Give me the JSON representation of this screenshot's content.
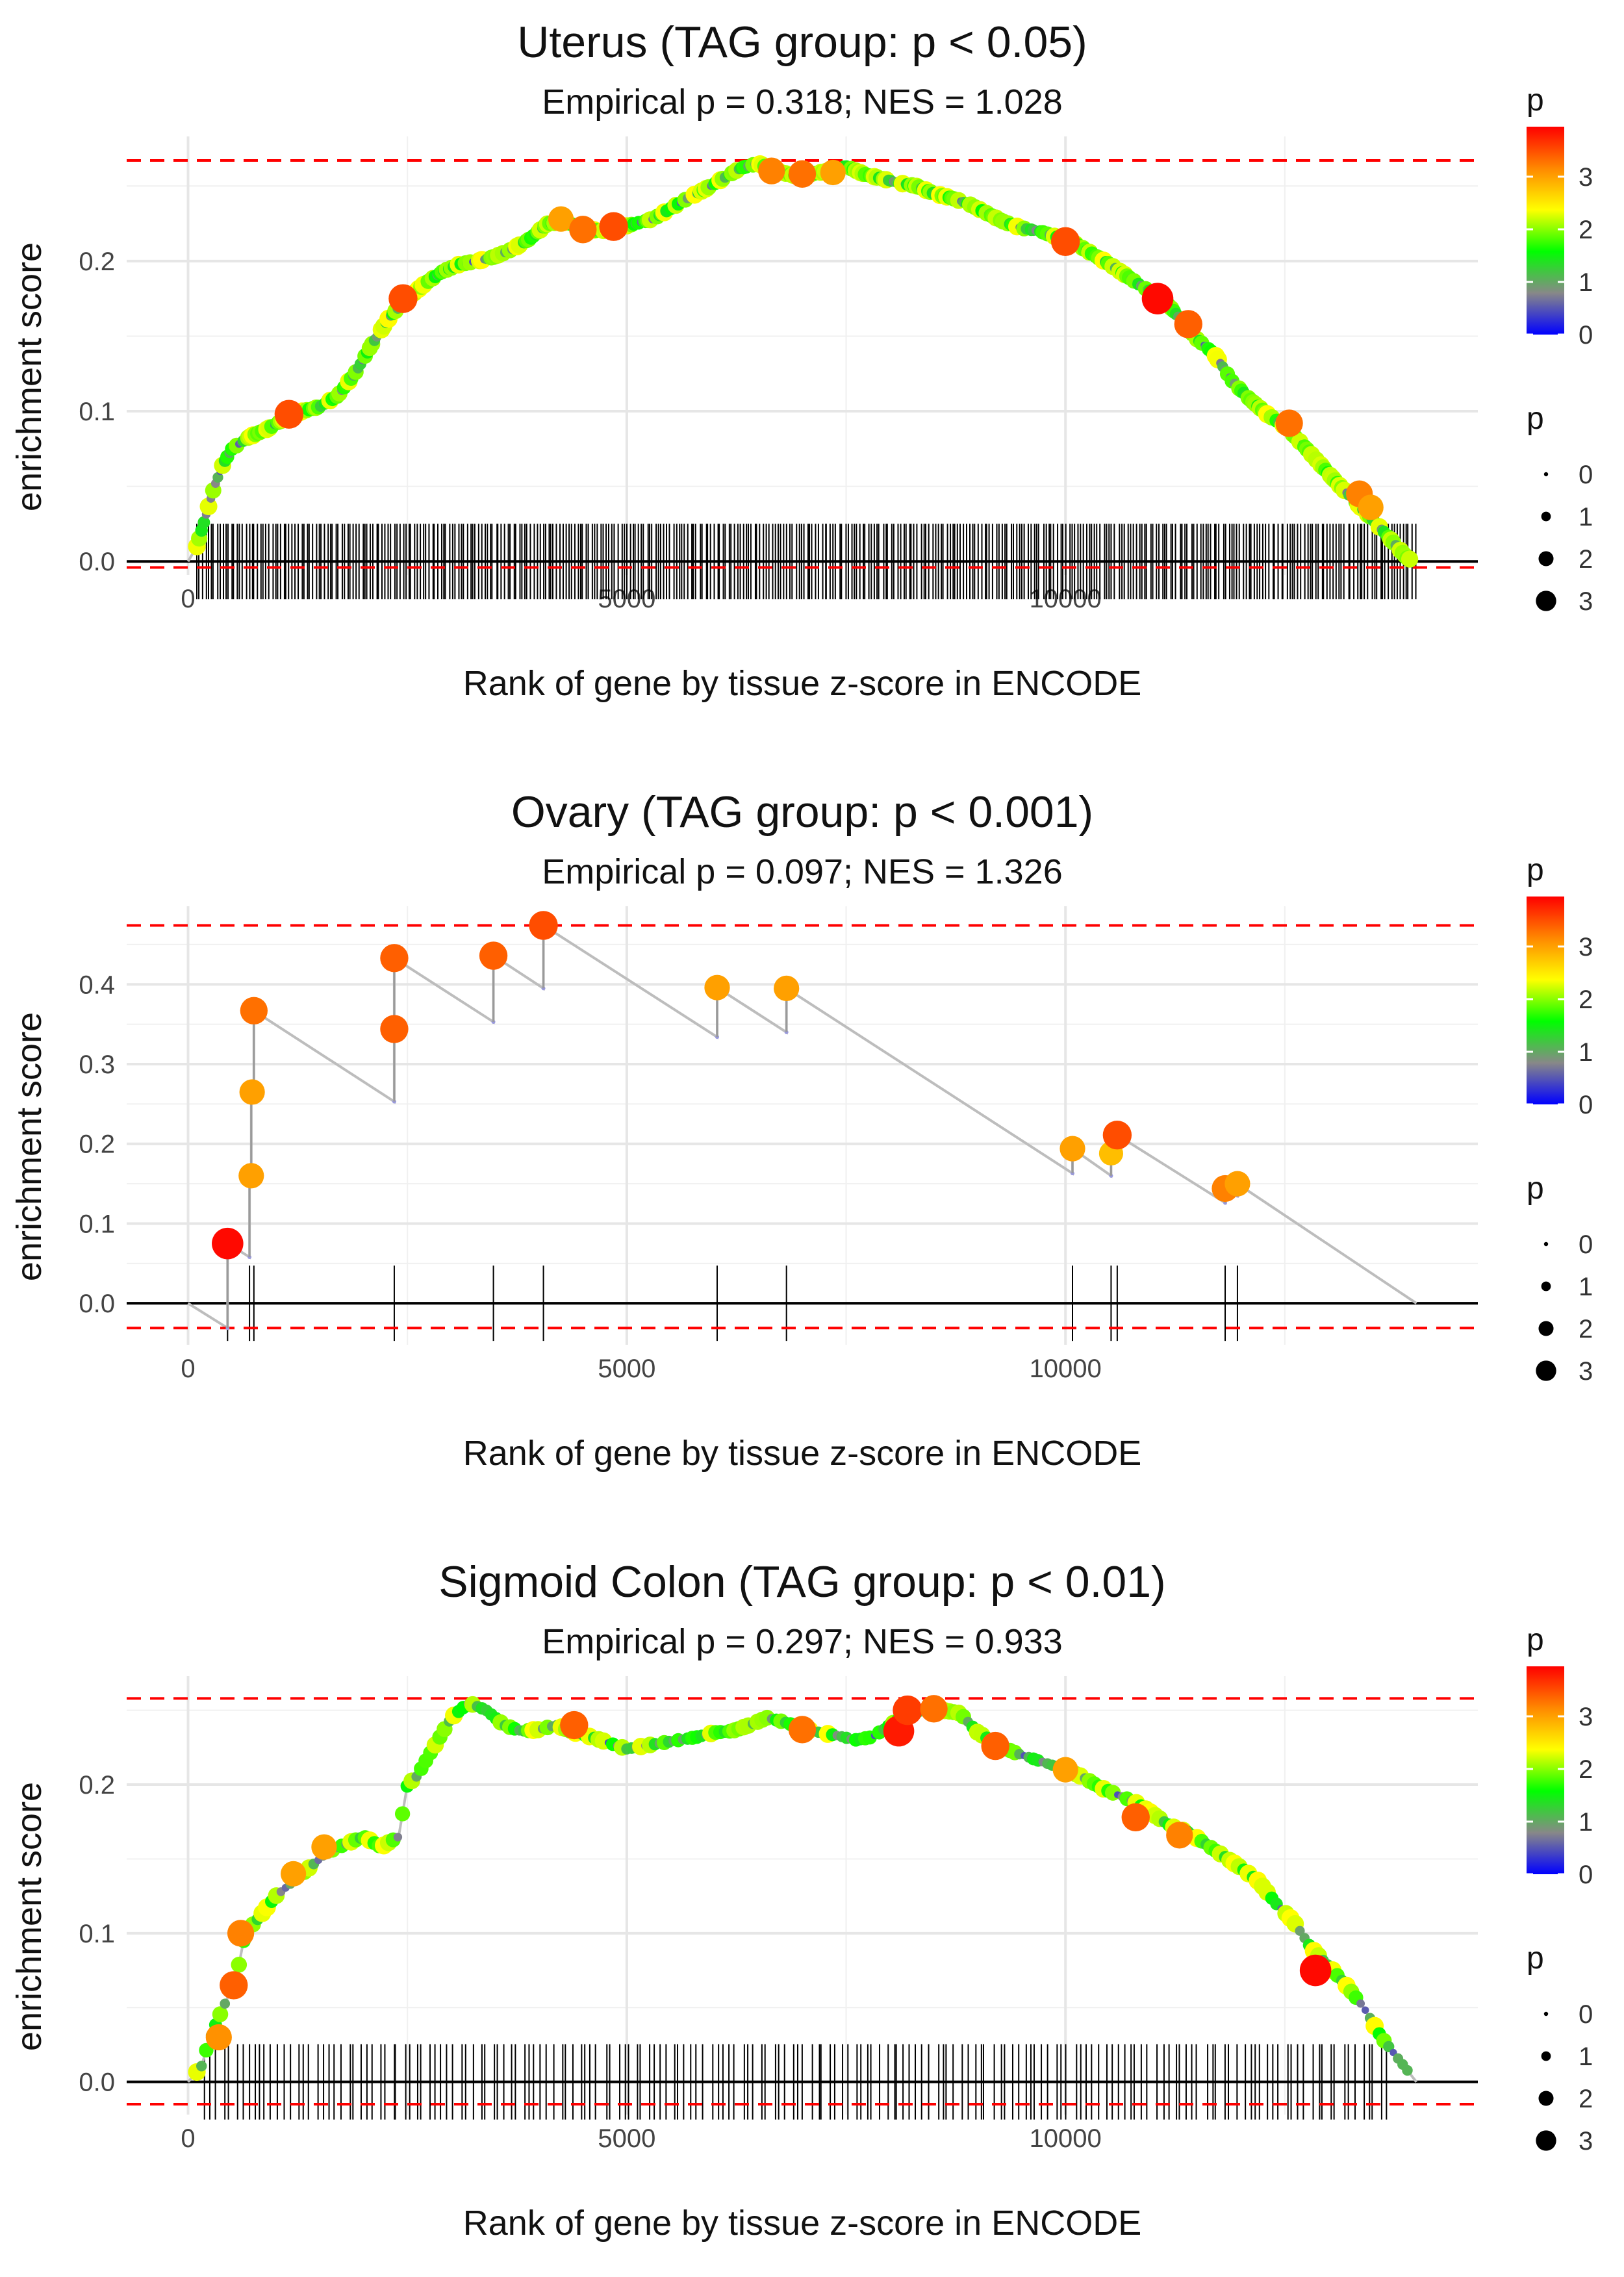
{
  "chart_data": [
    {
      "type": "line",
      "id": "uterus",
      "title": "Uterus (TAG group: p < 0.05)",
      "subtitle": "Empirical p = 0.318; NES = 1.028",
      "xlabel": "Rank of gene by tissue z-score in ENCODE",
      "ylabel": "enrichment score",
      "xlim": [
        -700,
        14700
      ],
      "ylim": [
        -0.009,
        0.283
      ],
      "xticks": [
        0,
        5000,
        10000
      ],
      "xtick_labels": [
        "0",
        "5000",
        "10000"
      ],
      "yticks": [
        0.0,
        0.1,
        0.2
      ],
      "ytick_labels": [
        "0.0",
        "0.1",
        "0.2"
      ],
      "max_es": 0.267,
      "min_es": -0.004,
      "curve_x": [
        0,
        100,
        150,
        200,
        300,
        400,
        500,
        700,
        900,
        1100,
        1300,
        1500,
        1700,
        1900,
        2100,
        2300,
        2500,
        2700,
        2900,
        3100,
        3300,
        3500,
        3700,
        3900,
        4100,
        4300,
        4500,
        4700,
        4900,
        5100,
        5300,
        5500,
        5700,
        5900,
        6100,
        6300,
        6500,
        6700,
        6900,
        7100,
        7300,
        7500,
        7700,
        7900,
        8100,
        8300,
        8500,
        8700,
        8900,
        9100,
        9300,
        9500,
        9700,
        9900,
        10100,
        10300,
        10500,
        10700,
        10900,
        11100,
        11300,
        11500,
        11700,
        11900,
        12100,
        12300,
        12500,
        12700,
        12900,
        13100,
        13300,
        13500,
        13700,
        13900,
        14000
      ],
      "curve_y": [
        0.0,
        0.01,
        0.02,
        0.03,
        0.05,
        0.065,
        0.075,
        0.083,
        0.088,
        0.095,
        0.1,
        0.103,
        0.11,
        0.125,
        0.145,
        0.163,
        0.175,
        0.185,
        0.193,
        0.198,
        0.2,
        0.203,
        0.208,
        0.215,
        0.225,
        0.226,
        0.222,
        0.22,
        0.222,
        0.225,
        0.228,
        0.235,
        0.242,
        0.248,
        0.255,
        0.262,
        0.265,
        0.26,
        0.257,
        0.258,
        0.26,
        0.263,
        0.258,
        0.255,
        0.252,
        0.25,
        0.245,
        0.242,
        0.238,
        0.232,
        0.226,
        0.222,
        0.22,
        0.216,
        0.212,
        0.205,
        0.198,
        0.19,
        0.182,
        0.176,
        0.162,
        0.148,
        0.138,
        0.12,
        0.108,
        0.098,
        0.09,
        0.078,
        0.065,
        0.052,
        0.04,
        0.028,
        0.015,
        0.002,
        0.0
      ],
      "points": [
        {
          "x": 1150,
          "y": 0.098,
          "p": 3.5
        },
        {
          "x": 2450,
          "y": 0.175,
          "p": 3.5
        },
        {
          "x": 4250,
          "y": 0.228,
          "p": 3.0
        },
        {
          "x": 4500,
          "y": 0.221,
          "p": 3.3
        },
        {
          "x": 4850,
          "y": 0.223,
          "p": 3.5
        },
        {
          "x": 6650,
          "y": 0.26,
          "p": 3.2
        },
        {
          "x": 7000,
          "y": 0.258,
          "p": 3.3
        },
        {
          "x": 7350,
          "y": 0.259,
          "p": 3.0
        },
        {
          "x": 10000,
          "y": 0.213,
          "p": 3.5
        },
        {
          "x": 11050,
          "y": 0.175,
          "p": 3.9
        },
        {
          "x": 11400,
          "y": 0.158,
          "p": 3.4
        },
        {
          "x": 12550,
          "y": 0.092,
          "p": 3.3
        },
        {
          "x": 13350,
          "y": 0.045,
          "p": 3.2
        },
        {
          "x": 13480,
          "y": 0.036,
          "p": 3.0
        }
      ],
      "dense_points": true,
      "rug_ticks": "dense",
      "rug_range": [
        80,
        14000
      ],
      "legend": {
        "color_title": "p",
        "color_ticks": [
          "0",
          "1",
          "2",
          "3"
        ],
        "size_title": "p",
        "size_labels": [
          "0",
          "1",
          "2",
          "3"
        ],
        "gradient": [
          "#0000ff",
          "#888888",
          "#00ff00",
          "#ffff00",
          "#ff8800",
          "#ff0000"
        ]
      }
    },
    {
      "type": "line",
      "id": "ovary",
      "title": "Ovary (TAG group: p < 0.001)",
      "subtitle": "Empirical p = 0.097; NES = 1.326",
      "xlabel": "Rank of gene by tissue z-score in ENCODE",
      "ylabel": "enrichment score",
      "xlim": [
        -700,
        14700
      ],
      "ylim": [
        -0.052,
        0.498
      ],
      "xticks": [
        0,
        5000,
        10000
      ],
      "xtick_labels": [
        "0",
        "5000",
        "10000"
      ],
      "yticks": [
        0.0,
        0.1,
        0.2,
        0.3,
        0.4
      ],
      "ytick_labels": [
        "0.0",
        "0.1",
        "0.2",
        "0.3",
        "0.4"
      ],
      "max_es": 0.474,
      "min_es": -0.031,
      "curve_x": [
        0,
        450,
        450,
        700,
        700,
        720,
        720,
        750,
        750,
        2350,
        2350,
        2350,
        3480,
        3480,
        4050,
        4050,
        6030,
        6030,
        6820,
        6820,
        10080,
        10080,
        10520,
        10520,
        10590,
        10590,
        11820,
        11820,
        11960,
        11960,
        14000
      ],
      "curve_y": [
        0.0,
        -0.031,
        0.075,
        0.058,
        0.16,
        0.16,
        0.265,
        0.265,
        0.367,
        0.253,
        0.344,
        0.433,
        0.353,
        0.436,
        0.395,
        0.474,
        0.334,
        0.396,
        0.34,
        0.395,
        0.163,
        0.194,
        0.16,
        0.188,
        0.183,
        0.211,
        0.126,
        0.144,
        0.135,
        0.15,
        0.0
      ],
      "points": [
        {
          "x": 450,
          "y": 0.075,
          "p": 3.9
        },
        {
          "x": 720,
          "y": 0.16,
          "p": 3.0
        },
        {
          "x": 730,
          "y": 0.265,
          "p": 3.0
        },
        {
          "x": 750,
          "y": 0.367,
          "p": 3.3
        },
        {
          "x": 2350,
          "y": 0.344,
          "p": 3.4
        },
        {
          "x": 2350,
          "y": 0.433,
          "p": 3.4
        },
        {
          "x": 3480,
          "y": 0.436,
          "p": 3.4
        },
        {
          "x": 4050,
          "y": 0.474,
          "p": 3.5
        },
        {
          "x": 6030,
          "y": 0.396,
          "p": 3.0
        },
        {
          "x": 6820,
          "y": 0.395,
          "p": 3.0
        },
        {
          "x": 10080,
          "y": 0.194,
          "p": 3.0
        },
        {
          "x": 10520,
          "y": 0.188,
          "p": 2.8
        },
        {
          "x": 10590,
          "y": 0.211,
          "p": 3.5
        },
        {
          "x": 11820,
          "y": 0.144,
          "p": 3.2
        },
        {
          "x": 11960,
          "y": 0.15,
          "p": 3.0
        }
      ],
      "dense_points": false,
      "rug_ticks": [
        450,
        700,
        750,
        2350,
        3480,
        4050,
        6030,
        6820,
        10080,
        10520,
        10590,
        11820,
        11960
      ],
      "legend": {
        "color_title": "p",
        "color_ticks": [
          "0",
          "1",
          "2",
          "3"
        ],
        "size_title": "p",
        "size_labels": [
          "0",
          "1",
          "2",
          "3"
        ],
        "gradient": [
          "#0000ff",
          "#888888",
          "#00ff00",
          "#ffff00",
          "#ff8800",
          "#ff0000"
        ]
      }
    },
    {
      "type": "line",
      "id": "sigmoid-colon",
      "title": "Sigmoid Colon (TAG group: p < 0.01)",
      "subtitle": "Empirical p = 0.297; NES = 0.933",
      "xlabel": "Rank of gene by tissue z-score in ENCODE",
      "ylabel": "enrichment score",
      "xlim": [
        -700,
        14700
      ],
      "ylim": [
        -0.022,
        0.273
      ],
      "xticks": [
        0,
        5000,
        10000
      ],
      "xtick_labels": [
        "0",
        "5000",
        "10000"
      ],
      "yticks": [
        0.0,
        0.1,
        0.2
      ],
      "ytick_labels": [
        "0.0",
        "0.1",
        "0.2"
      ],
      "max_es": 0.258,
      "min_es": -0.015,
      "curve_x": [
        0,
        150,
        250,
        400,
        550,
        650,
        800,
        1000,
        1200,
        1400,
        1600,
        1800,
        2000,
        2200,
        2400,
        2500,
        2600,
        2800,
        3000,
        3200,
        3400,
        3600,
        3800,
        4000,
        4200,
        4400,
        4600,
        4800,
        5000,
        5200,
        5400,
        5600,
        5800,
        6000,
        6200,
        6400,
        6600,
        6800,
        7000,
        7200,
        7400,
        7600,
        7800,
        8000,
        8200,
        8400,
        8600,
        8800,
        9000,
        9200,
        9400,
        9600,
        9800,
        10000,
        10200,
        10400,
        10600,
        10800,
        11000,
        11200,
        11400,
        11600,
        11800,
        12000,
        12200,
        12400,
        12600,
        12800,
        13000,
        13200,
        13400,
        13600,
        13800,
        14000
      ],
      "curve_y": [
        0.0,
        0.01,
        0.03,
        0.05,
        0.07,
        0.1,
        0.11,
        0.125,
        0.135,
        0.145,
        0.155,
        0.16,
        0.165,
        0.158,
        0.165,
        0.2,
        0.205,
        0.225,
        0.245,
        0.255,
        0.25,
        0.24,
        0.236,
        0.237,
        0.24,
        0.235,
        0.232,
        0.228,
        0.224,
        0.226,
        0.228,
        0.23,
        0.232,
        0.235,
        0.236,
        0.24,
        0.245,
        0.242,
        0.238,
        0.235,
        0.233,
        0.23,
        0.232,
        0.24,
        0.248,
        0.25,
        0.25,
        0.248,
        0.235,
        0.228,
        0.222,
        0.218,
        0.214,
        0.21,
        0.205,
        0.198,
        0.193,
        0.188,
        0.18,
        0.172,
        0.168,
        0.16,
        0.152,
        0.144,
        0.135,
        0.12,
        0.108,
        0.09,
        0.078,
        0.065,
        0.05,
        0.03,
        0.015,
        0.0
      ],
      "points": [
        {
          "x": 350,
          "y": 0.03,
          "p": 3.1
        },
        {
          "x": 520,
          "y": 0.065,
          "p": 3.4
        },
        {
          "x": 600,
          "y": 0.1,
          "p": 3.2
        },
        {
          "x": 1200,
          "y": 0.14,
          "p": 3.0
        },
        {
          "x": 1550,
          "y": 0.158,
          "p": 3.0
        },
        {
          "x": 4400,
          "y": 0.24,
          "p": 3.4
        },
        {
          "x": 7000,
          "y": 0.237,
          "p": 3.3
        },
        {
          "x": 8100,
          "y": 0.236,
          "p": 3.8
        },
        {
          "x": 8200,
          "y": 0.25,
          "p": 3.6
        },
        {
          "x": 8500,
          "y": 0.251,
          "p": 3.3
        },
        {
          "x": 9200,
          "y": 0.226,
          "p": 3.4
        },
        {
          "x": 10000,
          "y": 0.21,
          "p": 3.0
        },
        {
          "x": 10800,
          "y": 0.178,
          "p": 3.4
        },
        {
          "x": 11300,
          "y": 0.166,
          "p": 3.2
        },
        {
          "x": 12850,
          "y": 0.075,
          "p": 3.9
        }
      ],
      "dense_points": true,
      "rug_ticks": "medium",
      "rug_range": [
        150,
        13700
      ],
      "legend": {
        "color_title": "p",
        "color_ticks": [
          "0",
          "1",
          "2",
          "3"
        ],
        "size_title": "p",
        "size_labels": [
          "0",
          "1",
          "2",
          "3"
        ],
        "gradient": [
          "#0000ff",
          "#888888",
          "#00ff00",
          "#ffff00",
          "#ff8800",
          "#ff0000"
        ]
      }
    }
  ]
}
